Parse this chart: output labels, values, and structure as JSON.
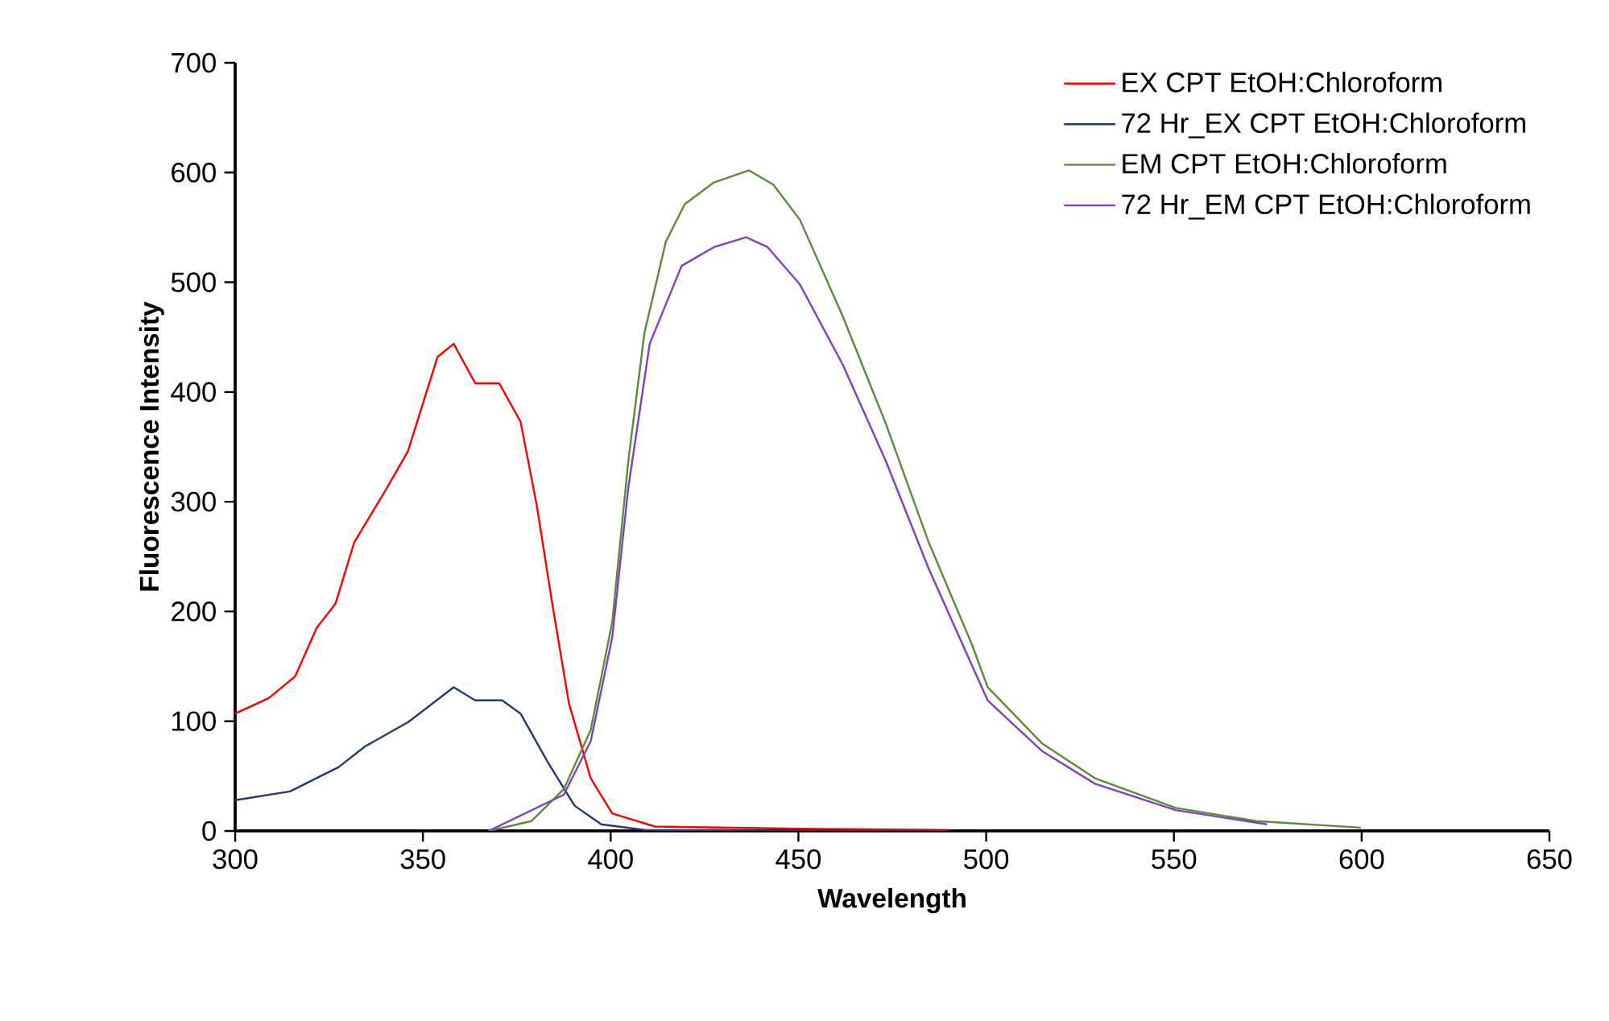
{
  "chart_data": {
    "type": "line",
    "xlabel": "Wavelength",
    "ylabel": "Fluorescence Intensity",
    "xlim": [
      300,
      650
    ],
    "ylim": [
      0,
      700
    ],
    "xticks": [
      300,
      350,
      400,
      450,
      500,
      550,
      600,
      650
    ],
    "yticks": [
      0,
      100,
      200,
      300,
      400,
      500,
      600,
      700
    ],
    "legend": "top right",
    "marker": "none",
    "line_style": "solid",
    "series": [
      {
        "name": "EX CPT EtOH:Chloroform",
        "color": "#ff0000",
        "x": [
          300,
          308.9,
          316,
          321.7,
          326.7,
          331.7,
          340.3,
          346,
          353.9,
          358.2,
          363.9,
          370.3,
          376,
          380.3,
          384.6,
          388.9,
          394.7,
          400.4,
          411.8,
          450,
          489.7
        ],
        "values": [
          107,
          121,
          141,
          185,
          207,
          263,
          312,
          346,
          432,
          444,
          408,
          408,
          373,
          297,
          204,
          116,
          48,
          16,
          4,
          2,
          1
        ]
      },
      {
        "name": "72 Hr_EX CPT EtOH:Chloroform",
        "color": "#1f3a6e",
        "x": [
          300,
          314.6,
          327.5,
          334.6,
          346,
          358.2,
          363.9,
          371.1,
          376,
          383.2,
          390.4,
          397.5,
          409,
          450,
          489.7
        ],
        "values": [
          28,
          36,
          58,
          77,
          99,
          131,
          119,
          119,
          107,
          63,
          23,
          6,
          1,
          0,
          0
        ]
      },
      {
        "name": "EM CPT EtOH:Chloroform",
        "color": "#5b8a3a",
        "x": [
          367.5,
          378.9,
          387.5,
          394.7,
          400.4,
          404.7,
          409,
          414.7,
          419.7,
          427.5,
          436.8,
          443.3,
          450.4,
          461.8,
          473.3,
          484.7,
          496.2,
          500.4,
          514.8,
          529,
          550.5,
          572,
          599.8
        ],
        "values": [
          0,
          9,
          38,
          92,
          190,
          337,
          454,
          537,
          571,
          591,
          602,
          589,
          557,
          469,
          371,
          263,
          170,
          131,
          80,
          48,
          21,
          9,
          3
        ]
      },
      {
        "name": "72 Hr_EM CPT EtOH:Chloroform",
        "color": "#7f3fbf",
        "x": [
          367.5,
          387.5,
          394.7,
          400.4,
          404.7,
          410.4,
          418.9,
          427.5,
          436.1,
          441.8,
          450.4,
          461.8,
          473.3,
          484.7,
          496.2,
          500.4,
          514.8,
          529,
          550.5,
          574.8
        ],
        "values": [
          0,
          33,
          82,
          176,
          313,
          444,
          515,
          532,
          541,
          532,
          498,
          425,
          337,
          239,
          151,
          119,
          73,
          43,
          19,
          6
        ]
      }
    ]
  }
}
